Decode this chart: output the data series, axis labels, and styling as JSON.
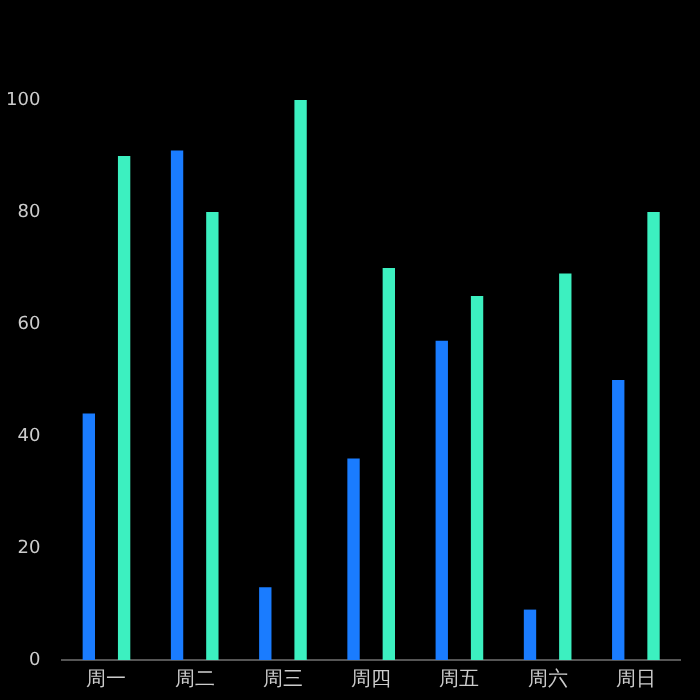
{
  "chart_data": {
    "type": "bar",
    "categories": [
      "周一",
      "周二",
      "周三",
      "周四",
      "周五",
      "周六",
      "周日"
    ],
    "series": [
      {
        "color": "#1a7cff",
        "values": [
          44,
          91,
          13,
          36,
          57,
          9,
          50
        ]
      },
      {
        "color": "#3cf0c0",
        "values": [
          90,
          80,
          100,
          70,
          65,
          69,
          80
        ]
      }
    ],
    "ylim": [
      0,
      100
    ],
    "yticks": [
      0,
      20,
      40,
      60,
      80,
      100
    ],
    "grid": false,
    "legend": false
  }
}
